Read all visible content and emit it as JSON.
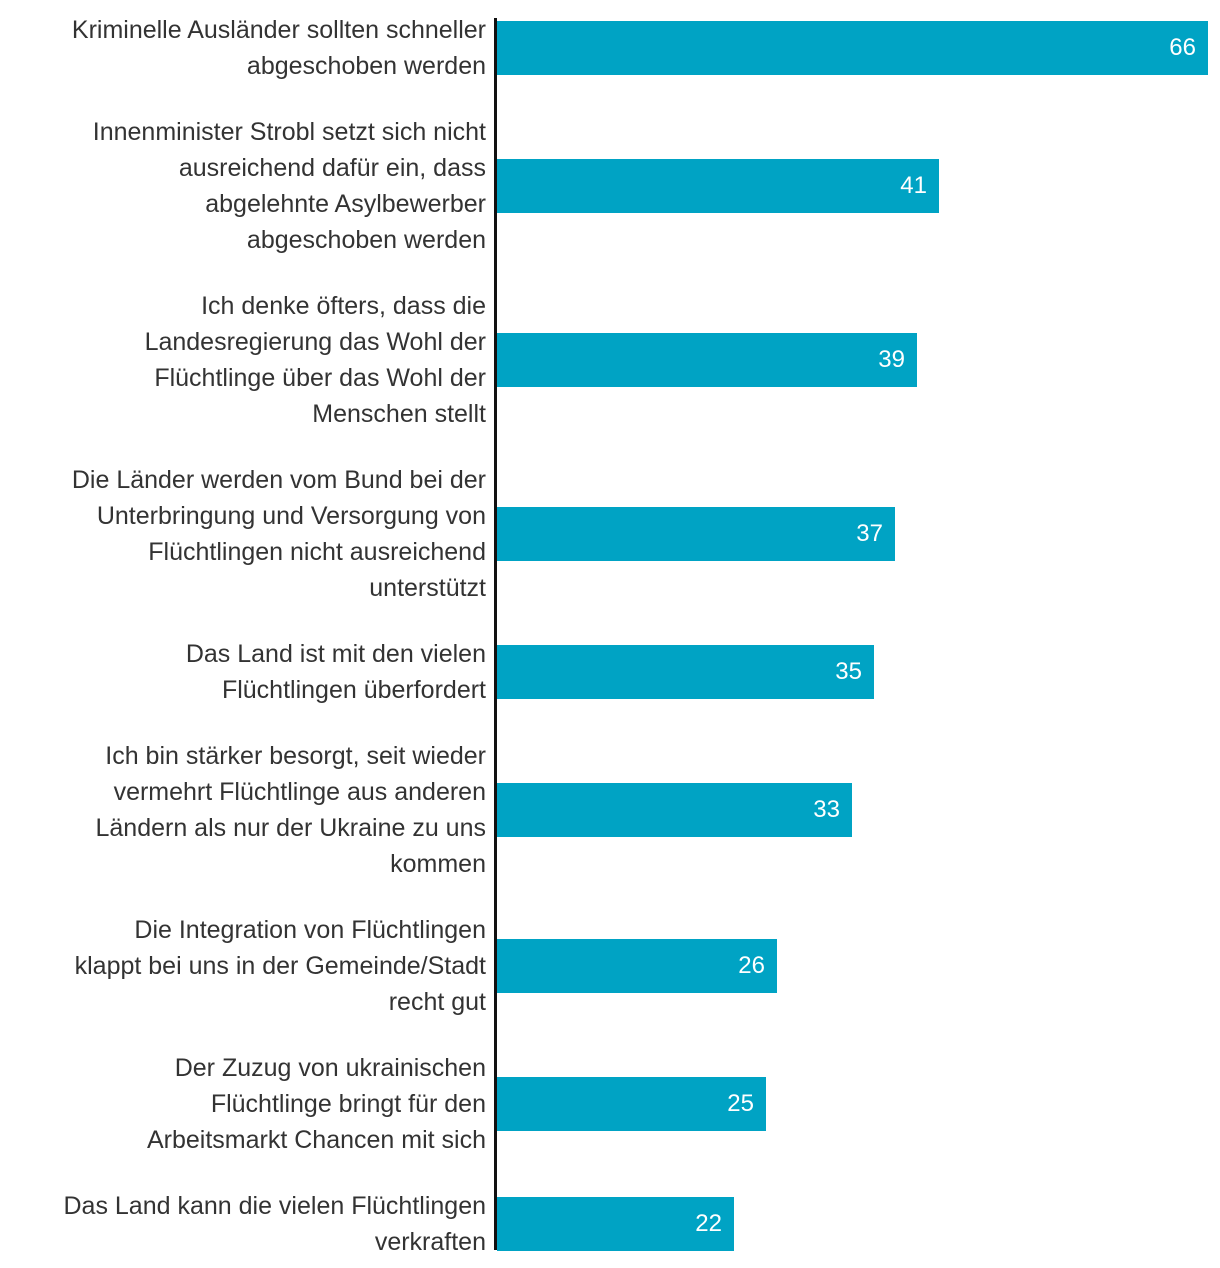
{
  "chart_data": {
    "type": "bar",
    "orientation": "horizontal",
    "title": "",
    "xlabel": "",
    "ylabel": "",
    "xlim": [
      0,
      66
    ],
    "grid": false,
    "bar_color": "#00a3c4",
    "categories": [
      "Kriminelle Ausländer sollten schneller\nabgeschoben werden",
      "Innenminister Strobl setzt sich nicht\nausreichend dafür ein, dass\nabgelehnte Asylbewerber\nabgeschoben werden",
      "Ich denke öfters, dass die\nLandesregierung das Wohl der\nFlüchtlinge über das Wohl der\nMenschen stellt",
      "Die Länder werden vom Bund bei der\nUnterbringung und Versorgung von\nFlüchtlingen nicht ausreichend\nunterstützt",
      "Das Land ist mit den vielen\nFlüchtlingen überfordert",
      "Ich bin stärker besorgt, seit wieder\nvermehrt Flüchtlinge aus anderen\nLändern als nur der Ukraine zu uns\nkommen",
      "Die Integration von Flüchtlingen\nklappt bei uns in der Gemeinde/Stadt\nrecht gut",
      "Der Zuzug von ukrainischen\nFlüchtlinge bringt für den\nArbeitsmarkt Chancen mit sich",
      "Das Land kann die vielen Flüchtlingen\nverkraften"
    ],
    "values": [
      66,
      41,
      39,
      37,
      35,
      33,
      26,
      25,
      22
    ]
  }
}
